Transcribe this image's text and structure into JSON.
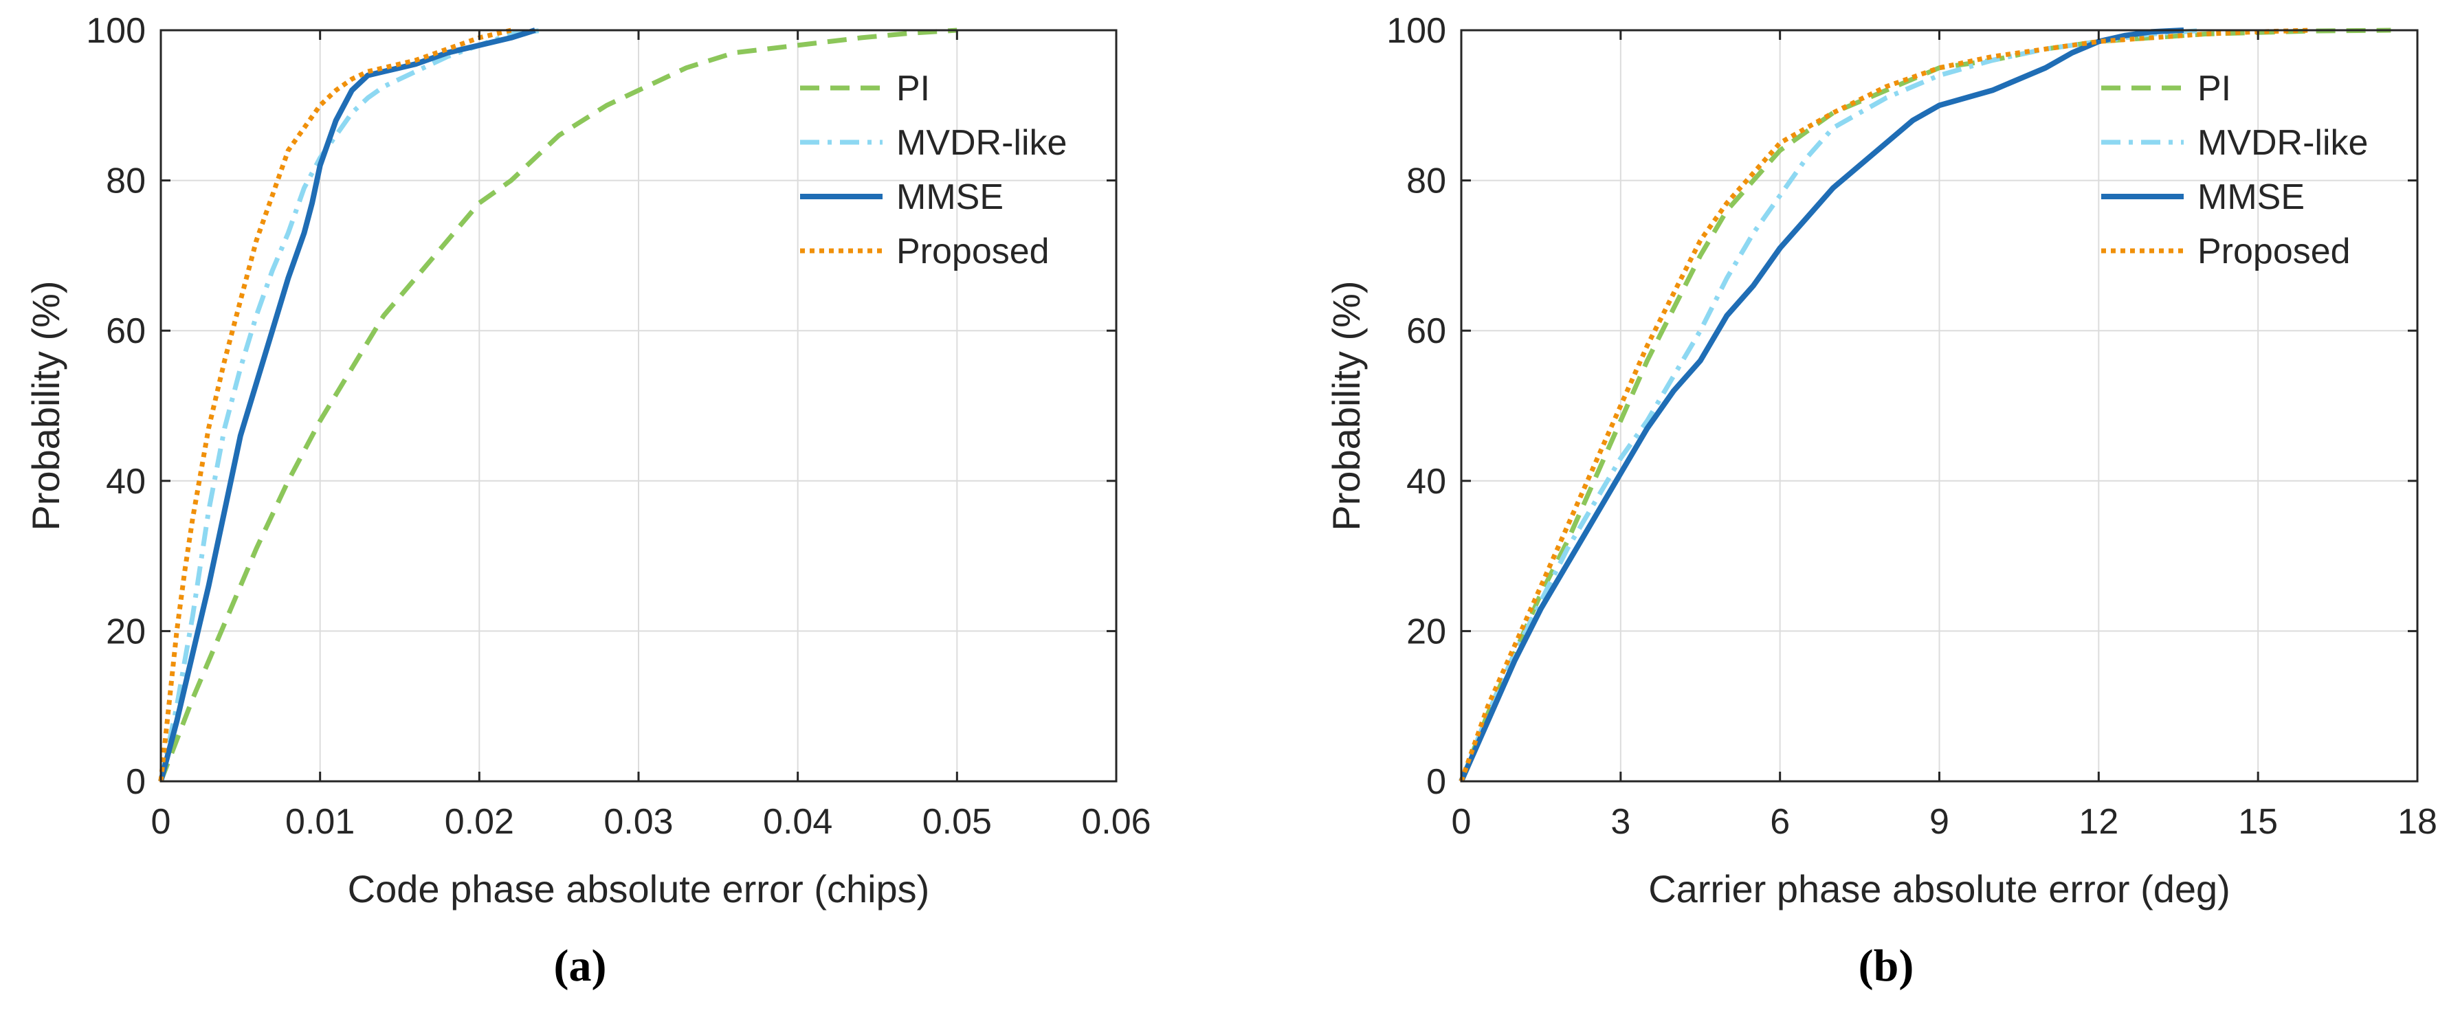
{
  "figure": {
    "captions": [
      "(a)",
      "(b)"
    ]
  },
  "chart_data": [
    {
      "type": "line",
      "panel": "a",
      "caption": "(a)",
      "xlabel": "Code phase absolute error (chips)",
      "ylabel": "Probability (%)",
      "xlim": [
        0,
        0.06
      ],
      "ylim": [
        0,
        100
      ],
      "xticks": [
        0,
        0.01,
        0.02,
        0.03,
        0.04,
        0.05,
        0.06
      ],
      "xtick_labels": [
        "0",
        "0.01",
        "0.02",
        "0.03",
        "0.04",
        "0.05",
        "0.06"
      ],
      "yticks": [
        0,
        20,
        40,
        60,
        80,
        100
      ],
      "ytick_labels": [
        "0",
        "20",
        "40",
        "60",
        "80",
        "100"
      ],
      "grid": true,
      "legend": "top-right",
      "series": [
        {
          "name": "PI",
          "color": "#8cc65a",
          "style": "dashed",
          "x": [
            0,
            0.002,
            0.004,
            0.006,
            0.008,
            0.01,
            0.012,
            0.014,
            0.016,
            0.018,
            0.02,
            0.022,
            0.025,
            0.028,
            0.03,
            0.033,
            0.036,
            0.04,
            0.044,
            0.047,
            0.05
          ],
          "y": [
            0,
            11,
            21,
            31,
            40,
            48,
            55,
            62,
            67,
            72,
            77,
            80,
            86,
            90,
            92,
            95,
            97,
            98,
            99,
            99.6,
            100
          ]
        },
        {
          "name": "MVDR-like",
          "color": "#8dd8f2",
          "style": "dash-dot",
          "x": [
            0,
            0.001,
            0.002,
            0.003,
            0.004,
            0.005,
            0.006,
            0.007,
            0.008,
            0.009,
            0.01,
            0.011,
            0.012,
            0.013,
            0.014,
            0.016,
            0.018,
            0.02,
            0.022,
            0.024
          ],
          "y": [
            0,
            10,
            22,
            36,
            47,
            55,
            62,
            68,
            73,
            79,
            83,
            86,
            89,
            91,
            92.5,
            94.5,
            96.5,
            98,
            99.5,
            100
          ]
        },
        {
          "name": "MMSE",
          "color": "#1f6db5",
          "style": "solid",
          "x": [
            0,
            0.001,
            0.002,
            0.003,
            0.004,
            0.005,
            0.006,
            0.007,
            0.008,
            0.009,
            0.0095,
            0.01,
            0.011,
            0.012,
            0.013,
            0.014,
            0.015,
            0.016,
            0.018,
            0.02,
            0.022,
            0.0235
          ],
          "y": [
            0,
            8,
            17,
            26,
            36,
            46,
            53,
            60,
            67,
            73,
            77,
            82,
            88,
            92,
            94,
            94.5,
            95,
            95.5,
            97,
            98,
            99,
            100
          ]
        },
        {
          "name": "Proposed",
          "color": "#f0900a",
          "style": "dotted",
          "x": [
            0,
            0.0005,
            0.001,
            0.0015,
            0.002,
            0.003,
            0.004,
            0.005,
            0.006,
            0.007,
            0.008,
            0.009,
            0.01,
            0.011,
            0.012,
            0.013,
            0.014,
            0.016,
            0.018,
            0.02,
            0.022
          ],
          "y": [
            0,
            10,
            20,
            28,
            35,
            47,
            56,
            64,
            72,
            78,
            84,
            87,
            90,
            92,
            93.5,
            94.5,
            95,
            96,
            97.5,
            99,
            100
          ]
        }
      ]
    },
    {
      "type": "line",
      "panel": "b",
      "caption": "(b)",
      "xlabel": "Carrier phase absolute error (deg)",
      "ylabel": "Probability (%)",
      "xlim": [
        0,
        18
      ],
      "ylim": [
        0,
        100
      ],
      "xticks": [
        0,
        3,
        6,
        9,
        12,
        15,
        18
      ],
      "xtick_labels": [
        "0",
        "3",
        "6",
        "9",
        "12",
        "15",
        "18"
      ],
      "yticks": [
        0,
        20,
        40,
        60,
        80,
        100
      ],
      "ytick_labels": [
        "0",
        "20",
        "40",
        "60",
        "80",
        "100"
      ],
      "grid": true,
      "legend": "top-right",
      "series": [
        {
          "name": "PI",
          "color": "#8cc65a",
          "style": "dashed",
          "x": [
            0,
            0.5,
            1,
            1.5,
            2,
            2.5,
            3,
            3.5,
            4,
            4.5,
            5,
            5.5,
            6,
            7,
            8,
            9,
            10,
            11,
            12,
            13,
            14,
            15,
            16,
            17.5
          ],
          "y": [
            0,
            9,
            17,
            25,
            32,
            40,
            48,
            56,
            63,
            70,
            76,
            80,
            84,
            89,
            92,
            95,
            96,
            97.5,
            98.5,
            99,
            99.5,
            99.7,
            99.9,
            100
          ]
        },
        {
          "name": "MVDR-like",
          "color": "#8dd8f2",
          "style": "dash-dot",
          "x": [
            0,
            0.5,
            1,
            1.5,
            2,
            2.5,
            3,
            3.5,
            4,
            4.5,
            5,
            5.5,
            6,
            6.5,
            7,
            8,
            9,
            10,
            11,
            12,
            13,
            14
          ],
          "y": [
            0,
            9,
            17,
            24,
            31,
            37,
            43,
            48,
            54,
            60,
            67,
            73,
            78,
            83,
            87,
            91,
            94,
            96,
            97.5,
            98.5,
            99.5,
            100
          ]
        },
        {
          "name": "MMSE",
          "color": "#1f6db5",
          "style": "solid",
          "x": [
            0,
            0.5,
            1,
            1.5,
            2,
            2.5,
            3,
            3.5,
            4,
            4.5,
            5,
            5.5,
            6,
            6.5,
            7,
            7.5,
            8,
            8.5,
            9,
            10,
            11,
            11.5,
            12,
            12.5,
            13,
            13.6
          ],
          "y": [
            0,
            8,
            16,
            23,
            29,
            35,
            41,
            47,
            52,
            56,
            62,
            66,
            71,
            75,
            79,
            82,
            85,
            88,
            90,
            92,
            95,
            97,
            98.5,
            99.3,
            99.8,
            100
          ]
        },
        {
          "name": "Proposed",
          "color": "#f0900a",
          "style": "dotted",
          "x": [
            0,
            0.5,
            1,
            1.5,
            2,
            2.5,
            3,
            3.5,
            4,
            4.5,
            5,
            5.5,
            6,
            7,
            8,
            9,
            10,
            11,
            12,
            13,
            14,
            15,
            16
          ],
          "y": [
            0,
            10,
            18,
            26,
            34,
            42,
            50,
            58,
            65,
            72,
            77,
            81,
            85,
            89,
            92.5,
            95,
            96.5,
            97.5,
            98.5,
            99,
            99.5,
            99.8,
            100
          ]
        }
      ]
    }
  ]
}
